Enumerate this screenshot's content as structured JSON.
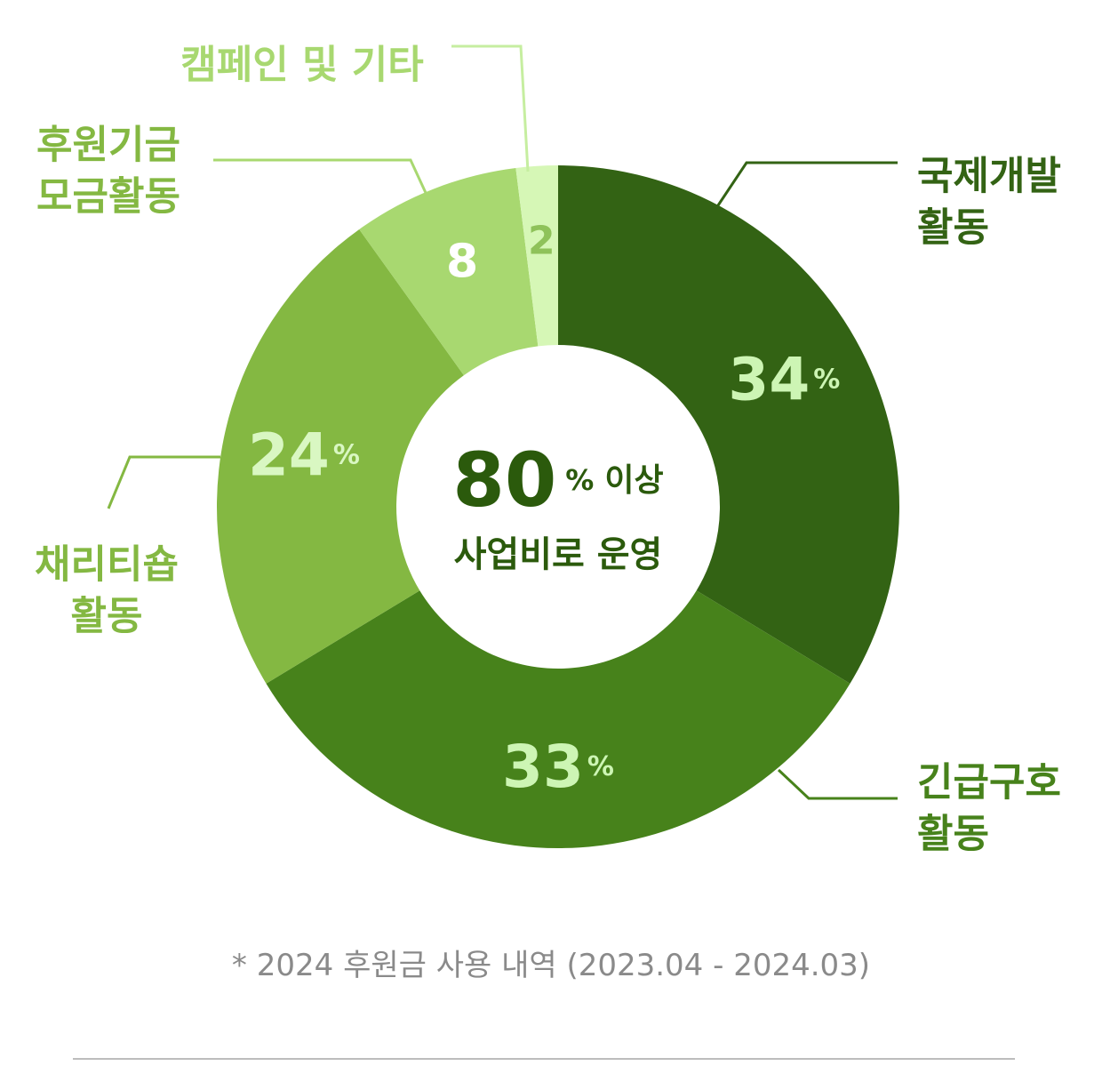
{
  "chart_data": {
    "type": "pie",
    "donut": true,
    "slices": [
      {
        "label_lines": [
          "국제개발",
          "활동"
        ],
        "value": 34,
        "display": "34",
        "unit": "%",
        "color": "#336314",
        "value_color": "#cdf5b4",
        "label_color": "#336314"
      },
      {
        "label_lines": [
          "긴급구호",
          "활동"
        ],
        "value": 33,
        "display": "33",
        "unit": "%",
        "color": "#47821b",
        "value_color": "#cdf5b4",
        "label_color": "#47821b"
      },
      {
        "label_lines": [
          "채리티숍",
          "활동"
        ],
        "value": 24,
        "display": "24",
        "unit": "%",
        "color": "#84b842",
        "value_color": "#d9f7c2",
        "label_color": "#84b842"
      },
      {
        "label_lines": [
          "후원기금",
          "모금활동"
        ],
        "value": 8,
        "display": "8",
        "unit": "",
        "color": "#a8d870",
        "value_color": "#ffffff",
        "label_color": "#84b842"
      },
      {
        "label_lines": [
          "캠페인 및 기타"
        ],
        "value": 2,
        "display": "2",
        "unit": "",
        "color": "#d6f7b6",
        "value_color": "#8fc25a",
        "label_color": "#a8d870"
      }
    ],
    "center": {
      "big": "80",
      "unit": "%",
      "suffix": "이상",
      "line2": "사업비로 운영",
      "color": "#2b5a0c"
    }
  },
  "footnote": "* 2024 후원금 사용 내역 (2023.04 - 2024.03)"
}
